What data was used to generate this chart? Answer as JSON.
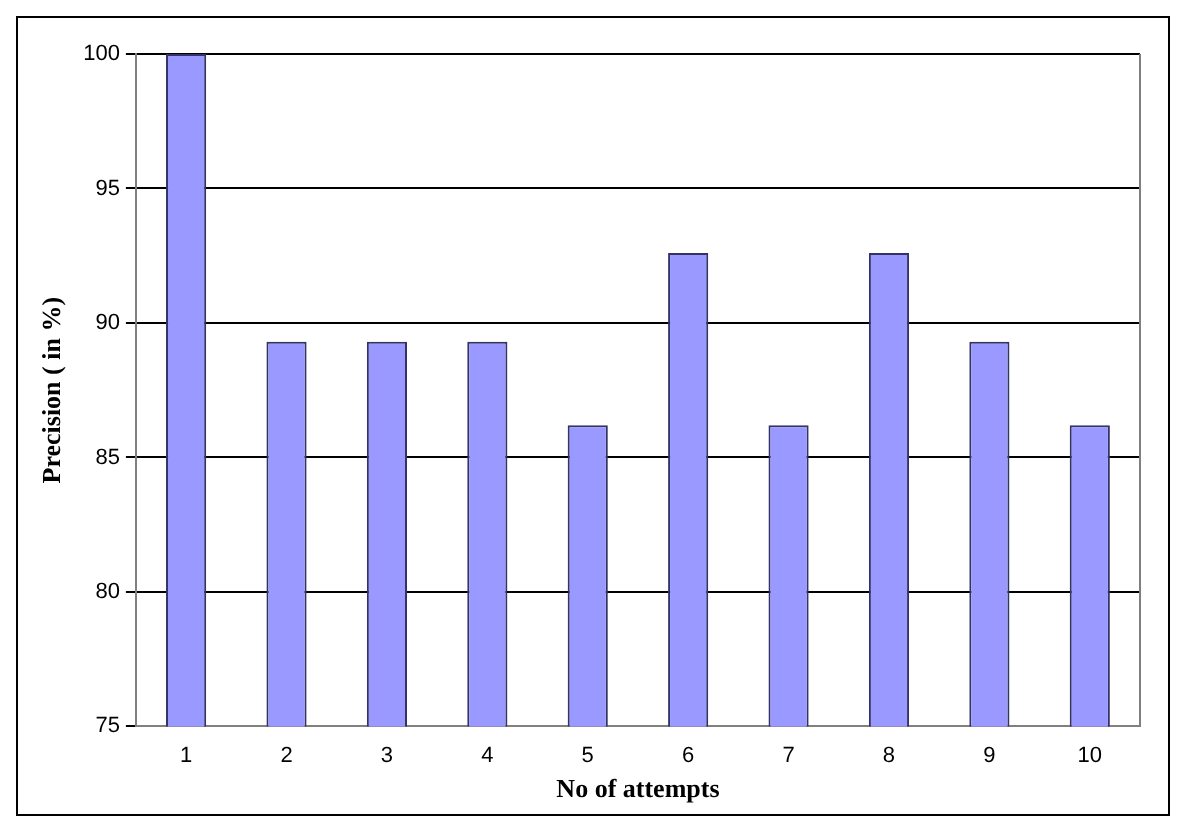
{
  "chart_data": {
    "type": "bar",
    "xlabel": "No of attempts",
    "ylabel": "Precision ( in %)",
    "categories": [
      "1",
      "2",
      "3",
      "4",
      "5",
      "6",
      "7",
      "8",
      "9",
      "10"
    ],
    "values": [
      100,
      89.3,
      89.3,
      89.3,
      86.2,
      92.6,
      86.2,
      92.6,
      89.3,
      86.2
    ],
    "color": "#9999ff",
    "ylim": [
      75,
      100
    ],
    "yticks": [
      75,
      80,
      85,
      90,
      95,
      100
    ],
    "grid": "y"
  }
}
